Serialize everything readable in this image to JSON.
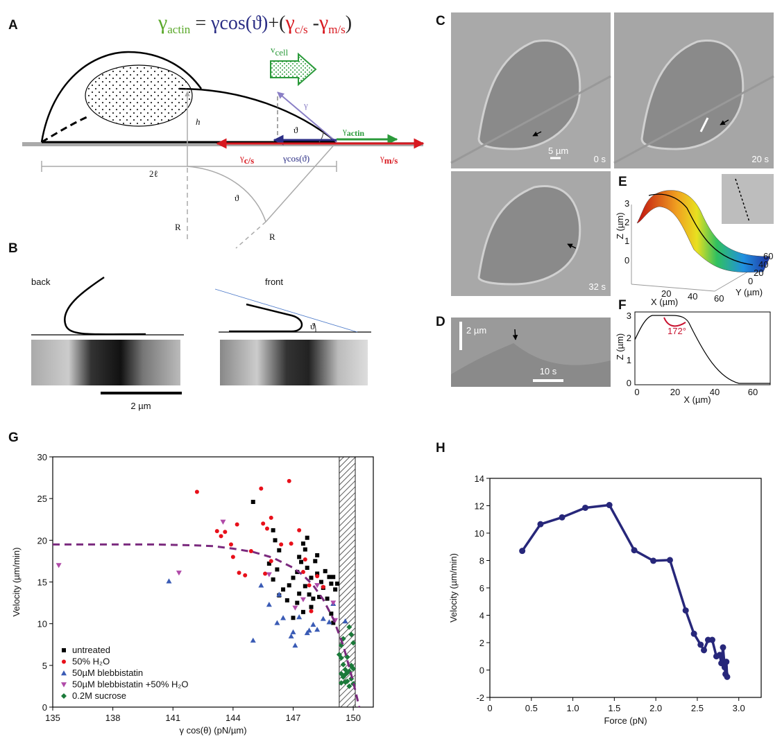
{
  "panels": {
    "A": {
      "label": "A",
      "equation": [
        "γ",
        "actin",
        " = ",
        "γcos(ϑ)",
        "+(",
        "γ",
        "c/s",
        " -",
        "γ",
        "m/s",
        ")"
      ],
      "v_cell": [
        "v",
        "cell"
      ],
      "gamma": "γ",
      "theta_top": "ϑ",
      "h": "h",
      "gamma_actin": [
        "γ",
        "actin"
      ],
      "gamma_cs": [
        "γ",
        "c/s"
      ],
      "gamma_cos": "γcos(ϑ)",
      "gamma_ms": [
        "γ",
        "m/s"
      ],
      "two_l": "2ℓ",
      "theta_bottom": "ϑ",
      "R_left": "R",
      "R_right": "R"
    },
    "B": {
      "label": "B",
      "back": "back",
      "front": "front",
      "theta": "ϑ",
      "scale": "2 µm"
    },
    "C": {
      "label": "C",
      "scale": "5 µm",
      "times": [
        "0 s",
        "20 s",
        "32 s"
      ]
    },
    "D": {
      "label": "D",
      "scale_y": "2 µm",
      "scale_x": "10 s"
    },
    "E": {
      "label": "E",
      "z_label": "Z (µm)",
      "x_label": "X (µm)",
      "y_label": "Y (µm)",
      "z_ticks": [
        3,
        2,
        1,
        0
      ],
      "x_ticks": [
        20,
        40,
        60
      ],
      "y_ticks": [
        0,
        20,
        40,
        60
      ]
    },
    "F": {
      "label": "F",
      "z_label": "Z (µm)",
      "x_label": "X (µm)",
      "angle": "172°",
      "z_ticks": [
        0,
        1,
        2,
        3
      ],
      "x_ticks": [
        0,
        20,
        40,
        60
      ]
    },
    "G": {
      "label": "G"
    },
    "H": {
      "label": "H"
    }
  },
  "chart_data": [
    {
      "type": "scatter",
      "xlabel": "γ cos(θ) (pN/µm)",
      "ylabel": "Velocity (µm/min)",
      "xlim": [
        135,
        151
      ],
      "ylim": [
        0,
        30
      ],
      "xticks": [
        135,
        138,
        141,
        144,
        147,
        150
      ],
      "yticks": [
        0,
        5,
        10,
        15,
        20,
        25,
        30
      ],
      "legend": "lower left",
      "x_band": [
        149.3,
        150.1
      ],
      "series": [
        {
          "name": "untreated",
          "color": "#000000",
          "marker": "square",
          "x": [
            145.0,
            146.0,
            146.1,
            146.3,
            145.8,
            146.2,
            146.0,
            146.5,
            146.3,
            146.7,
            147.0,
            147.2,
            147.3,
            147.5,
            147.6,
            147.4,
            147.7,
            147.9,
            147.6,
            147.8,
            147.2,
            147.0,
            147.5,
            147.9,
            148.1,
            148.2,
            148.4,
            148.3,
            148.5,
            148.6,
            148.8,
            148.9,
            149.0,
            148.9,
            149.0,
            149.2,
            149.1,
            148.7,
            148.0,
            147.3,
            146.8,
            147.7,
            148.2
          ],
          "values": [
            24.6,
            21.2,
            20.0,
            18.8,
            17.2,
            16.5,
            15.3,
            14.1,
            13.4,
            12.8,
            15.5,
            16.2,
            18.0,
            19.6,
            18.9,
            17.4,
            16.7,
            15.5,
            14.5,
            13.5,
            12.5,
            10.7,
            11.4,
            12.0,
            17.5,
            16.0,
            15.0,
            13.2,
            14.3,
            16.3,
            15.6,
            14.8,
            15.6,
            11.2,
            10.1,
            14.8,
            14.1,
            13.0,
            13.0,
            13.6,
            14.6,
            20.3,
            18.2
          ]
        },
        {
          "name": "50% H₂O",
          "color": "#e8101a",
          "marker": "circle",
          "x": [
            142.2,
            143.2,
            143.6,
            143.4,
            143.9,
            144.2,
            144.0,
            144.3,
            144.6,
            144.9,
            145.5,
            145.4,
            145.9,
            145.7,
            145.9,
            145.6,
            146.8,
            146.9,
            147.3,
            147.6,
            147.5,
            147.8,
            148.2,
            148.5,
            147.9,
            146.4
          ],
          "values": [
            25.8,
            21.1,
            21.0,
            20.5,
            19.5,
            21.9,
            18.0,
            16.1,
            15.8,
            18.7,
            22.0,
            26.2,
            22.7,
            21.4,
            17.5,
            16.0,
            27.1,
            19.6,
            21.2,
            17.7,
            16.2,
            14.6,
            15.7,
            14.4,
            11.5,
            19.5
          ]
        },
        {
          "name": "50µM blebbistatin",
          "color": "#3a5bb5",
          "marker": "triangle-up",
          "x": [
            140.8,
            145.0,
            145.4,
            145.8,
            146.3,
            146.2,
            146.5,
            146.9,
            147.0,
            147.3,
            147.7,
            148.0,
            148.2,
            148.5,
            148.8,
            147.8,
            147.1,
            149.6,
            149.0
          ],
          "values": [
            15.1,
            8.0,
            14.6,
            12.3,
            13.5,
            10.1,
            10.7,
            8.5,
            9.0,
            10.8,
            8.9,
            9.9,
            9.3,
            10.6,
            10.2,
            9.2,
            7.4,
            10.3,
            12.4
          ]
        },
        {
          "name": "50µM blebbistatin +50% H₂O",
          "color": "#b04aa8",
          "marker": "triangle-down",
          "x": [
            135.3,
            141.3,
            143.5,
            145.8,
            147.1,
            147.5,
            148.2,
            149.0,
            149.1
          ],
          "values": [
            17.0,
            16.1,
            22.2,
            15.9,
            11.9,
            12.9,
            14.6,
            12.5,
            10.4
          ]
        },
        {
          "name": "0.2M sucrose",
          "color": "#1b7a3a",
          "marker": "diamond",
          "x": [
            149.4,
            149.3,
            149.5,
            149.6,
            149.4,
            149.5,
            149.7,
            149.8,
            149.9,
            150.0,
            149.9,
            150.0,
            149.8,
            149.9,
            149.6,
            149.7,
            149.4,
            149.6,
            149.8,
            149.9,
            150.0,
            149.5,
            149.7,
            149.4
          ],
          "values": [
            7.4,
            6.3,
            5.1,
            4.5,
            4.0,
            3.6,
            3.1,
            4.3,
            4.9,
            7.7,
            5.0,
            4.6,
            2.5,
            3.4,
            3.9,
            6.0,
            2.9,
            3.0,
            9.6,
            8.7,
            2.8,
            8.2,
            4.1,
            5.9
          ]
        },
        {
          "color": "#7b2a7e",
          "marker": "dashed-line",
          "x": [
            135,
            140,
            142,
            143,
            144,
            145,
            146,
            147,
            147.5,
            148,
            148.5,
            149,
            149.5,
            150,
            150.3
          ],
          "values": [
            19.5,
            19.5,
            19.4,
            19.3,
            19.0,
            18.6,
            17.9,
            16.7,
            15.8,
            14.6,
            12.9,
            10.6,
            7.4,
            3.0,
            0
          ]
        }
      ]
    },
    {
      "type": "line",
      "xlabel": "Force (pN)",
      "ylabel": "Velocity (µm/min)",
      "xlim": [
        0,
        3.27
      ],
      "ylim": [
        -2,
        14
      ],
      "xticks": [
        0,
        0.5,
        {
          "value": 1,
          "label": "1.0"
        },
        1.5,
        {
          "value": 2,
          "label": "2.0"
        },
        2.5,
        {
          "value": 3,
          "label": "3.0"
        }
      ],
      "yticks": [
        -2,
        0,
        2,
        4,
        6,
        8,
        10,
        12,
        14
      ],
      "color": "#27277a",
      "x": [
        0.39,
        0.61,
        0.87,
        1.15,
        1.44,
        1.74,
        1.97,
        2.17,
        2.36,
        2.46,
        2.54,
        2.58,
        2.63,
        2.68,
        2.73,
        2.77,
        2.79,
        2.81,
        2.83,
        2.84,
        2.85,
        2.86
      ],
      "values": [
        8.7,
        10.65,
        11.15,
        11.85,
        12.05,
        8.75,
        7.98,
        8.03,
        4.35,
        2.65,
        1.85,
        1.45,
        2.2,
        2.2,
        1.0,
        1.1,
        0.5,
        1.65,
        0.2,
        -0.3,
        0.6,
        -0.5
      ]
    }
  ]
}
